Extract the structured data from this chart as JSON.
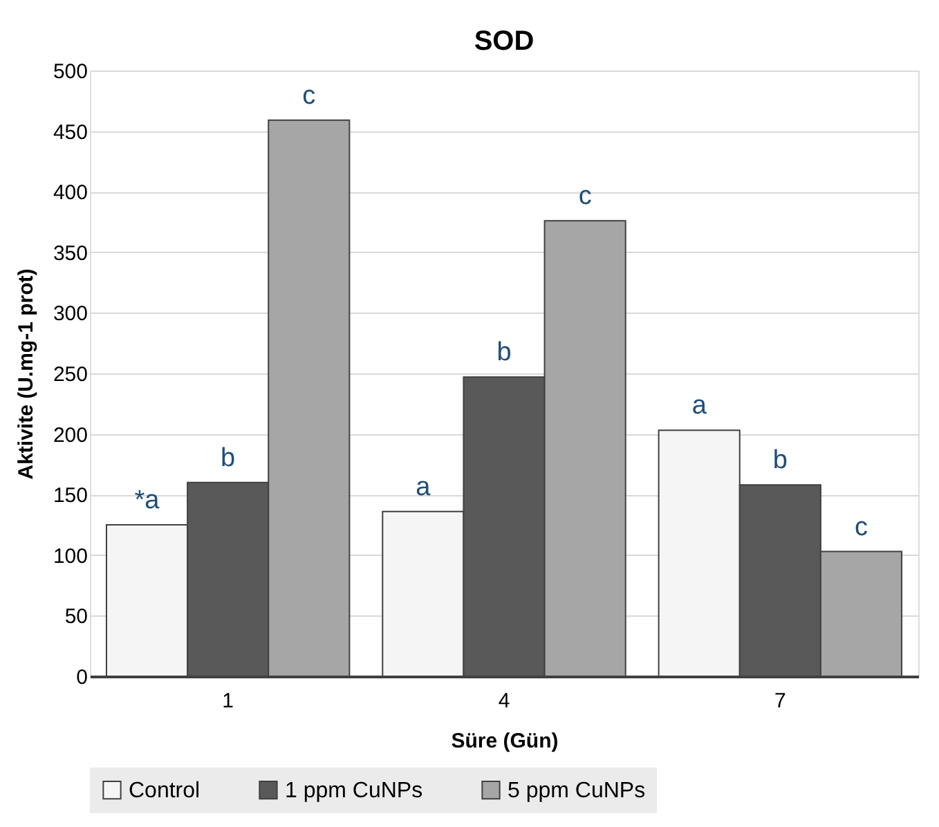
{
  "chart_data": {
    "type": "bar",
    "title": "SOD",
    "xlabel": "Süre (Gün)",
    "ylabel": "Aktivite (U.mg-1 prot)",
    "categories": [
      "1",
      "4",
      "7"
    ],
    "series": [
      {
        "name": "Control",
        "color": "#f5f5f5",
        "values": [
          125,
          136,
          203
        ],
        "value_labels": [
          "*a",
          "a",
          "a"
        ]
      },
      {
        "name": "1 ppm CuNPs",
        "color": "#595959",
        "values": [
          160,
          247,
          158
        ],
        "value_labels": [
          "b",
          "b",
          "b"
        ]
      },
      {
        "name": "5 ppm CuNPs",
        "color": "#a6a6a6",
        "values": [
          459,
          376,
          103
        ],
        "value_labels": [
          "c",
          "c",
          "c"
        ]
      }
    ],
    "ylim": [
      0,
      500
    ],
    "yticks": [
      0,
      50,
      100,
      150,
      200,
      250,
      300,
      350,
      400,
      450,
      500
    ],
    "grid": "y",
    "legend": "bottom"
  }
}
